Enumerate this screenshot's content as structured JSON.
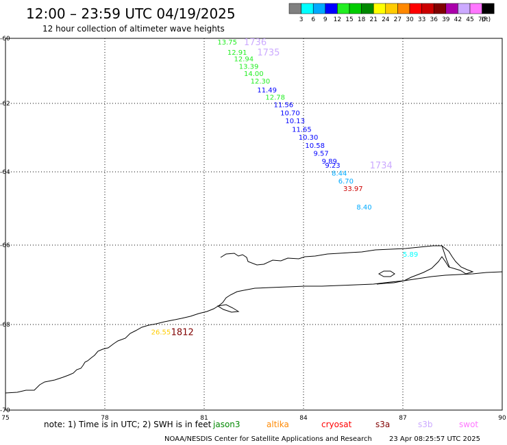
{
  "header": {
    "title": "12:00 – 23:59 UTC 04/19/2025",
    "subtitle": "12 hour collection of altimeter wave heights"
  },
  "legend": {
    "unit": "(ft)",
    "items": [
      {
        "label": "3",
        "color": "#808080"
      },
      {
        "label": "6",
        "color": "#00ffff"
      },
      {
        "label": "9",
        "color": "#00aaff"
      },
      {
        "label": "12",
        "color": "#0000ff"
      },
      {
        "label": "15",
        "color": "#22ee22"
      },
      {
        "label": "18",
        "color": "#00cc00"
      },
      {
        "label": "21",
        "color": "#008800"
      },
      {
        "label": "24",
        "color": "#ffff00"
      },
      {
        "label": "27",
        "color": "#ffcc00"
      },
      {
        "label": "30",
        "color": "#ff8800"
      },
      {
        "label": "33",
        "color": "#ff0000"
      },
      {
        "label": "36",
        "color": "#cc0000"
      },
      {
        "label": "39",
        "color": "#800000"
      },
      {
        "label": "42",
        "color": "#aa00aa"
      },
      {
        "label": "45",
        "color": "#ccaaff"
      },
      {
        "label": "70",
        "color": "#ff77ff"
      },
      {
        "label": "",
        "color": "#000000"
      }
    ]
  },
  "map": {
    "lon_ticks": [
      "75",
      "78",
      "81",
      "84",
      "87",
      "90"
    ],
    "lat_ticks": [
      "-60",
      "-62",
      "-64",
      "-66",
      "-68",
      "-70"
    ],
    "observations": [
      {
        "label": "13.75",
        "lon": 81.4,
        "lat": -60.1,
        "color": "#22ee22"
      },
      {
        "label": "12.91",
        "lon": 81.7,
        "lat": -60.42,
        "color": "#22ee22"
      },
      {
        "label": "12.94",
        "lon": 81.9,
        "lat": -60.62,
        "color": "#22ee22"
      },
      {
        "label": "13.39",
        "lon": 82.05,
        "lat": -60.85,
        "color": "#22ee22"
      },
      {
        "label": "14.00",
        "lon": 82.2,
        "lat": -61.07,
        "color": "#22ee22"
      },
      {
        "label": "12.30",
        "lon": 82.4,
        "lat": -61.3,
        "color": "#22ee22"
      },
      {
        "label": "11.49",
        "lon": 82.6,
        "lat": -61.58,
        "color": "#0000ff"
      },
      {
        "label": "12.78",
        "lon": 82.85,
        "lat": -61.8,
        "color": "#22ee22"
      },
      {
        "label": "11.56",
        "lon": 83.1,
        "lat": -62.03,
        "color": "#0000ff"
      },
      {
        "label": "10.70",
        "lon": 83.3,
        "lat": -62.27,
        "color": "#0000ff"
      },
      {
        "label": "10.13",
        "lon": 83.45,
        "lat": -62.5,
        "color": "#0000ff"
      },
      {
        "label": "11.65",
        "lon": 83.65,
        "lat": -62.75,
        "color": "#0000ff"
      },
      {
        "label": "10.30",
        "lon": 83.85,
        "lat": -62.98,
        "color": "#0000ff"
      },
      {
        "label": "10.58",
        "lon": 84.05,
        "lat": -63.22,
        "color": "#0000ff"
      },
      {
        "label": "9.57",
        "lon": 84.3,
        "lat": -63.45,
        "color": "#0000ff"
      },
      {
        "label": "9.89",
        "lon": 84.55,
        "lat": -63.68,
        "color": "#0000ff"
      },
      {
        "label": "9.23",
        "lon": 84.65,
        "lat": -63.8,
        "color": "#0000ff"
      },
      {
        "label": "8.44",
        "lon": 84.85,
        "lat": -64.03,
        "color": "#00aaff"
      },
      {
        "label": "6.70",
        "lon": 85.05,
        "lat": -64.24,
        "color": "#00aaff"
      },
      {
        "label": "33.97",
        "lon": 85.2,
        "lat": -64.45,
        "color": "#cc0000"
      },
      {
        "label": "8.40",
        "lon": 85.6,
        "lat": -64.95,
        "color": "#00aaff"
      },
      {
        "label": "5.89",
        "lon": 87.0,
        "lat": -66.22,
        "color": "#00ffff"
      },
      {
        "label": "26.55",
        "lon": 79.4,
        "lat": -68.17,
        "color": "#ffcc00"
      }
    ],
    "pass_labels": [
      {
        "label": "1736",
        "lon": 82.2,
        "lat": -60.1,
        "color": "#ccaaff"
      },
      {
        "label": "1735",
        "lon": 82.6,
        "lat": -60.42,
        "color": "#ccaaff"
      },
      {
        "label": "1734",
        "lon": 86.0,
        "lat": -63.8,
        "color": "#ccaaff"
      },
      {
        "label": "1812",
        "lon": 80.0,
        "lat": -68.17,
        "color": "#800000"
      }
    ]
  },
  "footer": {
    "note": "note: 1) Time is in UTC; 2) SWH is in feet",
    "satellites": [
      {
        "name": "jason3",
        "color": "#008800"
      },
      {
        "name": "altika",
        "color": "#ff8800"
      },
      {
        "name": "cryosat",
        "color": "#ff0000"
      },
      {
        "name": "s3a",
        "color": "#800000"
      },
      {
        "name": "s3b",
        "color": "#ccaaff"
      },
      {
        "name": "swot",
        "color": "#ff77ff"
      }
    ],
    "credit": "NOAA/NESDIS Center for Satellite Applications and Research",
    "timestamp": "23 Apr 08:25:57 UTC 2025"
  }
}
